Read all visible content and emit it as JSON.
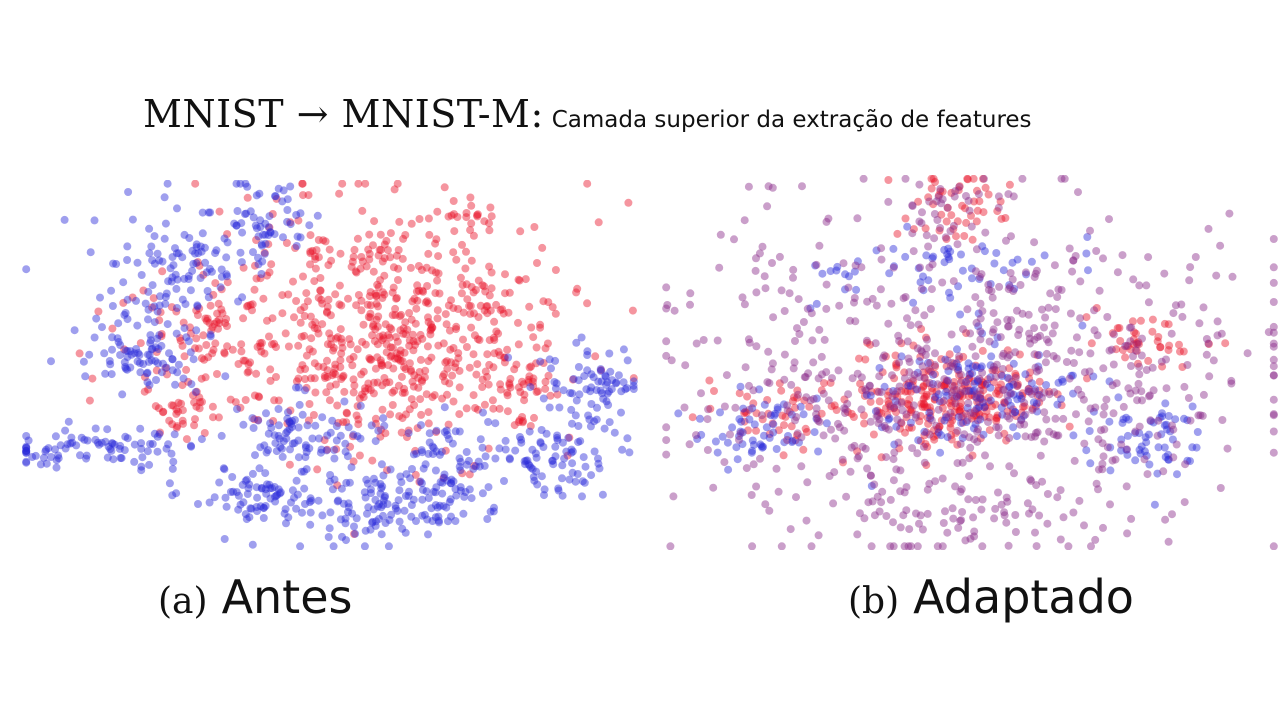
{
  "title": {
    "main": "MNIST → MNIST-M:",
    "subtitle": "Camada superior da extração de features"
  },
  "colors": {
    "source": "#2b2bd9",
    "target": "#e8142a",
    "mixed": "#8a2a8a"
  },
  "chart_data": [
    {
      "type": "scatter",
      "label": "(a)",
      "caption": "Antes",
      "series": [
        {
          "color": "#e8142a",
          "clusters": [
            {
              "cx": 0.6,
              "cy": 0.4,
              "sx": 0.14,
              "sy": 0.17,
              "n": 650
            },
            {
              "cx": 0.3,
              "cy": 0.45,
              "sx": 0.07,
              "sy": 0.08,
              "n": 90
            },
            {
              "cx": 0.25,
              "cy": 0.63,
              "sx": 0.03,
              "sy": 0.03,
              "n": 30
            },
            {
              "cx": 0.8,
              "cy": 0.55,
              "sx": 0.03,
              "sy": 0.03,
              "n": 30
            },
            {
              "cx": 0.73,
              "cy": 0.1,
              "sx": 0.02,
              "sy": 0.02,
              "n": 10
            }
          ]
        },
        {
          "color": "#2b2bd9",
          "clusters": [
            {
              "cx": 0.12,
              "cy": 0.72,
              "sx": 0.09,
              "sy": 0.03,
              "n": 90
            },
            {
              "cx": 0.2,
              "cy": 0.47,
              "sx": 0.05,
              "sy": 0.05,
              "n": 90
            },
            {
              "cx": 0.27,
              "cy": 0.23,
              "sx": 0.07,
              "sy": 0.07,
              "n": 110
            },
            {
              "cx": 0.4,
              "cy": 0.1,
              "sx": 0.04,
              "sy": 0.05,
              "n": 50
            },
            {
              "cx": 0.45,
              "cy": 0.68,
              "sx": 0.05,
              "sy": 0.05,
              "n": 80
            },
            {
              "cx": 0.4,
              "cy": 0.85,
              "sx": 0.06,
              "sy": 0.05,
              "n": 90
            },
            {
              "cx": 0.58,
              "cy": 0.88,
              "sx": 0.05,
              "sy": 0.05,
              "n": 90
            },
            {
              "cx": 0.68,
              "cy": 0.8,
              "sx": 0.04,
              "sy": 0.08,
              "n": 90
            },
            {
              "cx": 0.84,
              "cy": 0.75,
              "sx": 0.05,
              "sy": 0.05,
              "n": 80
            },
            {
              "cx": 0.92,
              "cy": 0.57,
              "sx": 0.04,
              "sy": 0.06,
              "n": 80
            }
          ]
        }
      ]
    },
    {
      "type": "scatter",
      "label": "(b)",
      "caption": "Adaptado",
      "series": [
        {
          "color": "#e8142a",
          "clusters": [
            {
              "cx": 0.47,
              "cy": 0.6,
              "sx": 0.08,
              "sy": 0.07,
              "n": 260
            },
            {
              "cx": 0.78,
              "cy": 0.45,
              "sx": 0.05,
              "sy": 0.04,
              "n": 40
            },
            {
              "cx": 0.48,
              "cy": 0.08,
              "sx": 0.04,
              "sy": 0.05,
              "n": 50
            },
            {
              "cx": 0.2,
              "cy": 0.63,
              "sx": 0.06,
              "sy": 0.05,
              "n": 50
            }
          ]
        },
        {
          "color": "#2b2bd9",
          "clusters": [
            {
              "cx": 0.5,
              "cy": 0.58,
              "sx": 0.08,
              "sy": 0.07,
              "n": 130
            },
            {
              "cx": 0.15,
              "cy": 0.68,
              "sx": 0.06,
              "sy": 0.05,
              "n": 60
            },
            {
              "cx": 0.78,
              "cy": 0.7,
              "sx": 0.05,
              "sy": 0.05,
              "n": 60
            },
            {
              "cx": 0.45,
              "cy": 0.25,
              "sx": 0.1,
              "sy": 0.05,
              "n": 60
            }
          ]
        },
        {
          "color": "#8a2a8a",
          "clusters": [
            {
              "cx": 0.5,
              "cy": 0.55,
              "sx": 0.24,
              "sy": 0.22,
              "n": 700
            },
            {
              "cx": 0.48,
              "cy": 0.08,
              "sx": 0.04,
              "sy": 0.05,
              "n": 30
            },
            {
              "cx": 0.48,
              "cy": 0.9,
              "sx": 0.1,
              "sy": 0.03,
              "n": 40
            }
          ]
        }
      ]
    }
  ]
}
